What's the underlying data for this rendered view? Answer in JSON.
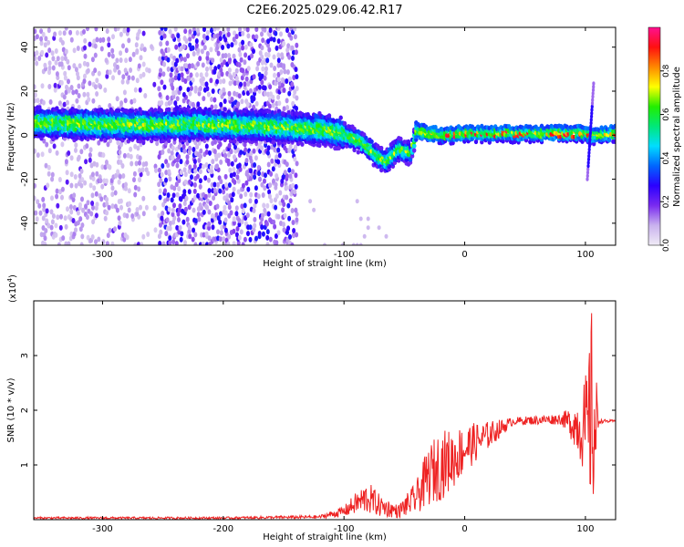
{
  "title": "C2E6.2025.029.06.42.R17",
  "chart_data": [
    {
      "type": "heatmap",
      "xlabel": "Height of straight line (km)",
      "ylabel": "Frequency (Hz)",
      "xlim": [
        -357,
        125
      ],
      "ylim": [
        -50,
        49
      ],
      "xticks": [
        -300,
        -200,
        -100,
        0,
        100
      ],
      "yticks": [
        -40,
        -20,
        0,
        20,
        40
      ],
      "colorbar": {
        "label": "Normalized spectral amplitude",
        "range": [
          0,
          1
        ],
        "ticks": [
          "0.0",
          "0.2",
          "0.4",
          "0.6",
          "0.8"
        ],
        "tick_values": [
          0.0,
          0.2,
          0.4,
          0.6,
          0.8
        ],
        "colors": [
          "#f0ecf6",
          "#c9b2ee",
          "#7a2bf0",
          "#2b00ff",
          "#0066ff",
          "#00ddff",
          "#00e87a",
          "#22ee00",
          "#ffff00",
          "#ff8800",
          "#ff1010",
          "#ff1090"
        ]
      },
      "ridge_frequency_hz": [
        {
          "x": -355,
          "y": 6
        },
        {
          "x": -300,
          "y": 5
        },
        {
          "x": -250,
          "y": 5
        },
        {
          "x": -200,
          "y": 5
        },
        {
          "x": -150,
          "y": 4
        },
        {
          "x": -120,
          "y": 3
        },
        {
          "x": -100,
          "y": 1
        },
        {
          "x": -85,
          "y": -3
        },
        {
          "x": -75,
          "y": -8
        },
        {
          "x": -65,
          "y": -12
        },
        {
          "x": -55,
          "y": -6
        },
        {
          "x": -45,
          "y": -8
        },
        {
          "x": -40,
          "y": 2
        },
        {
          "x": -20,
          "y": 0
        },
        {
          "x": 0,
          "y": 1
        },
        {
          "x": 50,
          "y": 1
        },
        {
          "x": 100,
          "y": 1
        },
        {
          "x": 105,
          "y": 0
        },
        {
          "x": 125,
          "y": 1
        }
      ],
      "grid": false
    },
    {
      "type": "line",
      "xlabel": "Height of straight line (km)",
      "ylabel": "SNR (10 * v/v)",
      "y_multiplier": "(x10",
      "y_multiplier_exp": "4",
      "y_multiplier_close": ")",
      "xlim": [
        -357,
        125
      ],
      "ylim": [
        0,
        4
      ],
      "xticks": [
        -300,
        -200,
        -100,
        0,
        100
      ],
      "yticks": [
        1,
        2,
        3
      ],
      "series_color": "#ee2222",
      "envelope": [
        {
          "x": -357,
          "mean": 0.03,
          "amp": 0.02
        },
        {
          "x": -200,
          "mean": 0.03,
          "amp": 0.02
        },
        {
          "x": -120,
          "mean": 0.05,
          "amp": 0.03
        },
        {
          "x": -100,
          "mean": 0.15,
          "amp": 0.1
        },
        {
          "x": -90,
          "mean": 0.3,
          "amp": 0.2
        },
        {
          "x": -80,
          "mean": 0.4,
          "amp": 0.3
        },
        {
          "x": -70,
          "mean": 0.25,
          "amp": 0.2
        },
        {
          "x": -55,
          "mean": 0.15,
          "amp": 0.12
        },
        {
          "x": -40,
          "mean": 0.4,
          "amp": 0.3
        },
        {
          "x": -30,
          "mean": 0.8,
          "amp": 0.55
        },
        {
          "x": -20,
          "mean": 1.0,
          "amp": 0.65
        },
        {
          "x": -10,
          "mean": 1.1,
          "amp": 0.55
        },
        {
          "x": 0,
          "mean": 1.3,
          "amp": 0.45
        },
        {
          "x": 20,
          "mean": 1.55,
          "amp": 0.25
        },
        {
          "x": 40,
          "mean": 1.8,
          "amp": 0.07
        },
        {
          "x": 80,
          "mean": 1.84,
          "amp": 0.1
        },
        {
          "x": 90,
          "mean": 1.75,
          "amp": 0.35
        },
        {
          "x": 98,
          "mean": 1.7,
          "amp": 0.8
        },
        {
          "x": 102,
          "mean": 1.6,
          "amp": 1.2
        },
        {
          "x": 105,
          "mean": 2.0,
          "amp": 1.9
        },
        {
          "x": 108,
          "mean": 1.6,
          "amp": 1.5
        },
        {
          "x": 111,
          "mean": 1.8,
          "amp": 0.04
        },
        {
          "x": 125,
          "mean": 1.8,
          "amp": 0.02
        }
      ],
      "grid": false
    }
  ]
}
